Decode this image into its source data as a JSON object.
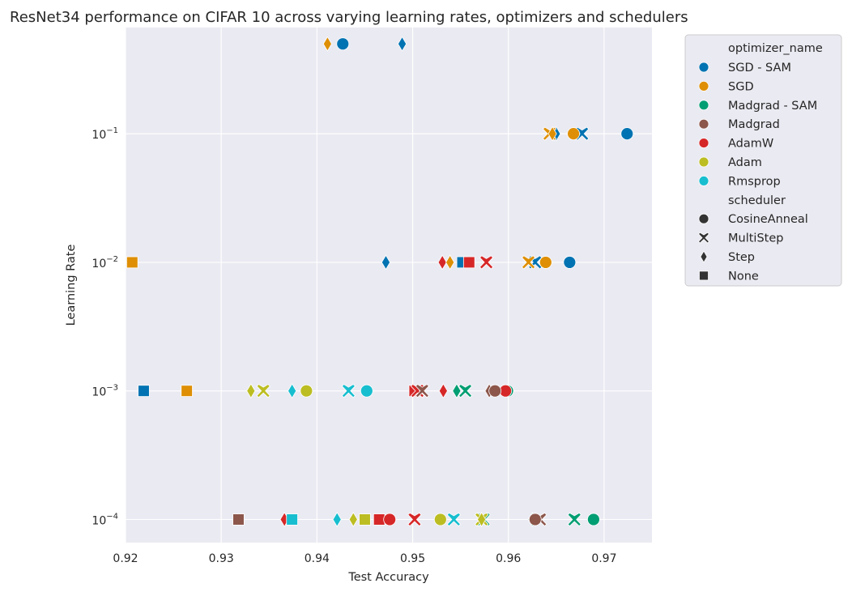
{
  "chart_data": {
    "type": "scatter",
    "title": "ResNet34 performance on CIFAR 10 across varying learning rates, optimizers and schedulers",
    "xlabel": "Test Accuracy",
    "ylabel": "Learning Rate",
    "xlim": [
      0.92,
      0.975
    ],
    "ylim": [
      6.61e-05,
      0.67
    ],
    "y_scale": "log",
    "grid": true,
    "legend_placement": "outside-right",
    "x_ticks": [
      "0.92",
      "0.93",
      "0.94",
      "0.95",
      "0.96",
      "0.97"
    ],
    "x_tick_values": [
      0.92,
      0.93,
      0.94,
      0.95,
      0.96,
      0.97
    ],
    "y_ticks": [
      {
        "value": 0.1,
        "base": "10",
        "exp": "−1"
      },
      {
        "value": 0.01,
        "base": "10",
        "exp": "−2"
      },
      {
        "value": 0.001,
        "base": "10",
        "exp": "−3"
      },
      {
        "value": 0.0001,
        "base": "10",
        "exp": "−4"
      }
    ],
    "legend": {
      "hue_title": "optimizer_name",
      "style_title": "scheduler",
      "optimizers": [
        {
          "name": "SGD - SAM",
          "color": "#0173b2"
        },
        {
          "name": "SGD",
          "color": "#de8f05"
        },
        {
          "name": "Madgrad - SAM",
          "color": "#029e73"
        },
        {
          "name": "Madgrad",
          "color": "#8c564b"
        },
        {
          "name": "AdamW",
          "color": "#d62728"
        },
        {
          "name": "Adam",
          "color": "#bcbd22"
        },
        {
          "name": "Rmsprop",
          "color": "#17becf"
        }
      ],
      "schedulers": [
        {
          "name": "CosineAnneal",
          "marker": "circle"
        },
        {
          "name": "MultiStep",
          "marker": "x"
        },
        {
          "name": "Step",
          "marker": "diamond"
        },
        {
          "name": "None",
          "marker": "square"
        }
      ]
    },
    "points": [
      {
        "x": 0.9427,
        "y": 0.5,
        "optimizer": "SGD - SAM",
        "scheduler": "CosineAnneal"
      },
      {
        "x": 0.9489,
        "y": 0.5,
        "optimizer": "SGD - SAM",
        "scheduler": "Step"
      },
      {
        "x": 0.9411,
        "y": 0.5,
        "optimizer": "SGD",
        "scheduler": "Step"
      },
      {
        "x": 0.9724,
        "y": 0.1,
        "optimizer": "SGD - SAM",
        "scheduler": "CosineAnneal"
      },
      {
        "x": 0.9677,
        "y": 0.1,
        "optimizer": "SGD - SAM",
        "scheduler": "MultiStep"
      },
      {
        "x": 0.965,
        "y": 0.1,
        "optimizer": "SGD - SAM",
        "scheduler": "Step"
      },
      {
        "x": 0.9668,
        "y": 0.1,
        "optimizer": "SGD",
        "scheduler": "CosineAnneal"
      },
      {
        "x": 0.9643,
        "y": 0.1,
        "optimizer": "SGD",
        "scheduler": "MultiStep"
      },
      {
        "x": 0.9646,
        "y": 0.1,
        "optimizer": "SGD",
        "scheduler": "Step"
      },
      {
        "x": 0.9207,
        "y": 0.01,
        "optimizer": "SGD",
        "scheduler": "None"
      },
      {
        "x": 0.9472,
        "y": 0.01,
        "optimizer": "SGD - SAM",
        "scheduler": "Step"
      },
      {
        "x": 0.9531,
        "y": 0.01,
        "optimizer": "AdamW",
        "scheduler": "Step"
      },
      {
        "x": 0.9539,
        "y": 0.01,
        "optimizer": "SGD",
        "scheduler": "Step"
      },
      {
        "x": 0.9552,
        "y": 0.01,
        "optimizer": "SGD - SAM",
        "scheduler": "None"
      },
      {
        "x": 0.9559,
        "y": 0.01,
        "optimizer": "AdamW",
        "scheduler": "None"
      },
      {
        "x": 0.9577,
        "y": 0.01,
        "optimizer": "AdamW",
        "scheduler": "MultiStep"
      },
      {
        "x": 0.9628,
        "y": 0.01,
        "optimizer": "SGD - SAM",
        "scheduler": "MultiStep"
      },
      {
        "x": 0.9621,
        "y": 0.01,
        "optimizer": "SGD",
        "scheduler": "MultiStep"
      },
      {
        "x": 0.9639,
        "y": 0.01,
        "optimizer": "SGD",
        "scheduler": "CosineAnneal"
      },
      {
        "x": 0.9664,
        "y": 0.01,
        "optimizer": "SGD - SAM",
        "scheduler": "CosineAnneal"
      },
      {
        "x": 0.9219,
        "y": 0.001,
        "optimizer": "SGD - SAM",
        "scheduler": "None"
      },
      {
        "x": 0.9264,
        "y": 0.001,
        "optimizer": "SGD",
        "scheduler": "None"
      },
      {
        "x": 0.9331,
        "y": 0.001,
        "optimizer": "Adam",
        "scheduler": "Step"
      },
      {
        "x": 0.9344,
        "y": 0.001,
        "optimizer": "Adam",
        "scheduler": "MultiStep"
      },
      {
        "x": 0.9374,
        "y": 0.001,
        "optimizer": "Rmsprop",
        "scheduler": "Step"
      },
      {
        "x": 0.9389,
        "y": 0.001,
        "optimizer": "Adam",
        "scheduler": "CosineAnneal"
      },
      {
        "x": 0.9433,
        "y": 0.001,
        "optimizer": "Rmsprop",
        "scheduler": "MultiStep"
      },
      {
        "x": 0.9452,
        "y": 0.001,
        "optimizer": "Rmsprop",
        "scheduler": "CosineAnneal"
      },
      {
        "x": 0.9502,
        "y": 0.001,
        "optimizer": "AdamW",
        "scheduler": "None"
      },
      {
        "x": 0.9505,
        "y": 0.001,
        "optimizer": "AdamW",
        "scheduler": "MultiStep"
      },
      {
        "x": 0.951,
        "y": 0.001,
        "optimizer": "Madgrad",
        "scheduler": "MultiStep"
      },
      {
        "x": 0.9532,
        "y": 0.001,
        "optimizer": "AdamW",
        "scheduler": "Step"
      },
      {
        "x": 0.9546,
        "y": 0.001,
        "optimizer": "Madgrad - SAM",
        "scheduler": "Step"
      },
      {
        "x": 0.9555,
        "y": 0.001,
        "optimizer": "Madgrad - SAM",
        "scheduler": "MultiStep"
      },
      {
        "x": 0.958,
        "y": 0.001,
        "optimizer": "Madgrad",
        "scheduler": "Step"
      },
      {
        "x": 0.9599,
        "y": 0.001,
        "optimizer": "Madgrad - SAM",
        "scheduler": "CosineAnneal"
      },
      {
        "x": 0.9597,
        "y": 0.001,
        "optimizer": "AdamW",
        "scheduler": "CosineAnneal"
      },
      {
        "x": 0.9586,
        "y": 0.001,
        "optimizer": "Madgrad",
        "scheduler": "CosineAnneal"
      },
      {
        "x": 0.9318,
        "y": 0.0001,
        "optimizer": "Madgrad",
        "scheduler": "None"
      },
      {
        "x": 0.9366,
        "y": 0.0001,
        "optimizer": "AdamW",
        "scheduler": "Step"
      },
      {
        "x": 0.9374,
        "y": 0.0001,
        "optimizer": "Rmsprop",
        "scheduler": "None"
      },
      {
        "x": 0.9421,
        "y": 0.0001,
        "optimizer": "Rmsprop",
        "scheduler": "Step"
      },
      {
        "x": 0.9438,
        "y": 0.0001,
        "optimizer": "Adam",
        "scheduler": "Step"
      },
      {
        "x": 0.945,
        "y": 0.0001,
        "optimizer": "Adam",
        "scheduler": "None"
      },
      {
        "x": 0.9465,
        "y": 0.0001,
        "optimizer": "AdamW",
        "scheduler": "None"
      },
      {
        "x": 0.9476,
        "y": 0.0001,
        "optimizer": "AdamW",
        "scheduler": "CosineAnneal"
      },
      {
        "x": 0.9502,
        "y": 0.0001,
        "optimizer": "AdamW",
        "scheduler": "MultiStep"
      },
      {
        "x": 0.9529,
        "y": 0.0001,
        "optimizer": "Adam",
        "scheduler": "CosineAnneal"
      },
      {
        "x": 0.9543,
        "y": 0.0001,
        "optimizer": "Rmsprop",
        "scheduler": "MultiStep"
      },
      {
        "x": 0.9574,
        "y": 0.0001,
        "optimizer": "Madgrad - SAM",
        "scheduler": "MultiStep"
      },
      {
        "x": 0.9572,
        "y": 0.0001,
        "optimizer": "Adam",
        "scheduler": "MultiStep"
      },
      {
        "x": 0.9572,
        "y": 0.0001,
        "optimizer": "Adam",
        "scheduler": "Step"
      },
      {
        "x": 0.9625,
        "y": 0.0001,
        "optimizer": "Madgrad - SAM",
        "scheduler": "Step"
      },
      {
        "x": 0.9633,
        "y": 0.0001,
        "optimizer": "Madgrad",
        "scheduler": "MultiStep"
      },
      {
        "x": 0.9628,
        "y": 0.0001,
        "optimizer": "Madgrad",
        "scheduler": "CosineAnneal"
      },
      {
        "x": 0.9669,
        "y": 0.0001,
        "optimizer": "Madgrad - SAM",
        "scheduler": "MultiStep"
      },
      {
        "x": 0.9689,
        "y": 0.0001,
        "optimizer": "Madgrad - SAM",
        "scheduler": "CosineAnneal"
      }
    ]
  }
}
